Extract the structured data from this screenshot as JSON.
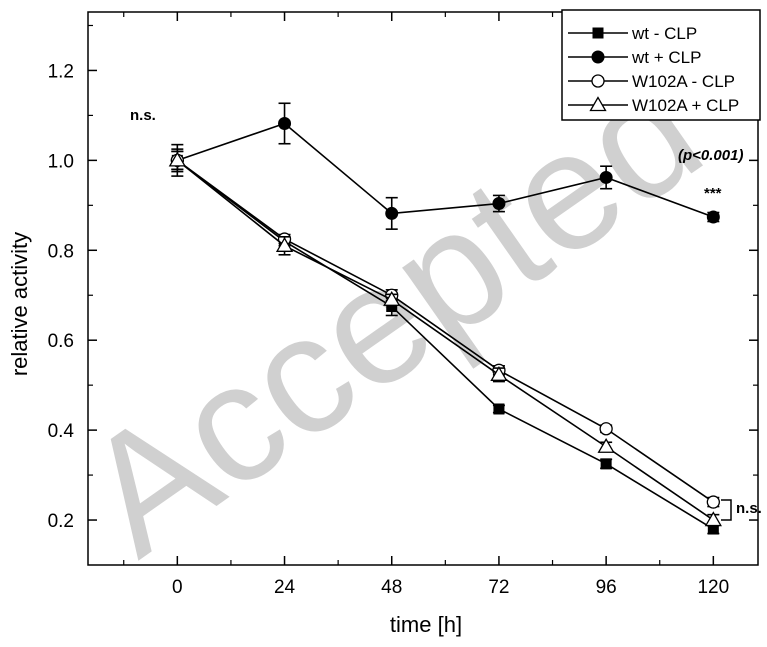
{
  "chart_data": {
    "type": "line",
    "xlabel": "time [h]",
    "ylabel": "relative activity",
    "x": [
      0,
      24,
      48,
      72,
      96,
      120
    ],
    "xticks": [
      "0",
      "24",
      "48",
      "72",
      "96",
      "120"
    ],
    "yticks": [
      "0.2",
      "0.4",
      "0.6",
      "0.8",
      "1.0",
      "1.2"
    ],
    "ytick_values": [
      0.2,
      0.4,
      0.6,
      0.8,
      1.0,
      1.2
    ],
    "xlim": [
      -20,
      130
    ],
    "ylim": [
      0.1,
      1.33
    ],
    "grid": false,
    "legend_position": "top-right",
    "series": [
      {
        "name": "wt - CLP",
        "marker": "square-filled",
        "values": [
          1.0,
          0.82,
          0.675,
          0.447,
          0.325,
          0.18
        ],
        "errors": [
          0.02,
          0.01,
          0.02,
          0.008,
          0.01,
          0.01
        ]
      },
      {
        "name": "wt + CLP",
        "marker": "circle-filled",
        "values": [
          1.0,
          1.082,
          0.882,
          0.904,
          0.962,
          0.874
        ],
        "errors": [
          0.035,
          0.045,
          0.035,
          0.018,
          0.025,
          0.01
        ]
      },
      {
        "name": "W102A - CLP",
        "marker": "circle-open",
        "values": [
          1.0,
          0.825,
          0.7,
          0.533,
          0.403,
          0.24
        ],
        "errors": [
          0.02,
          0.01,
          0.012,
          0.01,
          0.008,
          0.01
        ]
      },
      {
        "name": "W102A + CLP",
        "marker": "triangle-open",
        "values": [
          1.0,
          0.81,
          0.69,
          0.523,
          0.363,
          0.2
        ],
        "errors": [
          0.025,
          0.02,
          0.012,
          0.015,
          0.01,
          0.012
        ]
      }
    ],
    "annotations": {
      "ns_top": "n.s.",
      "p_value": "(p<0.001)",
      "stars": "***",
      "ns_right": "n.s."
    },
    "watermark": "Accepted"
  }
}
